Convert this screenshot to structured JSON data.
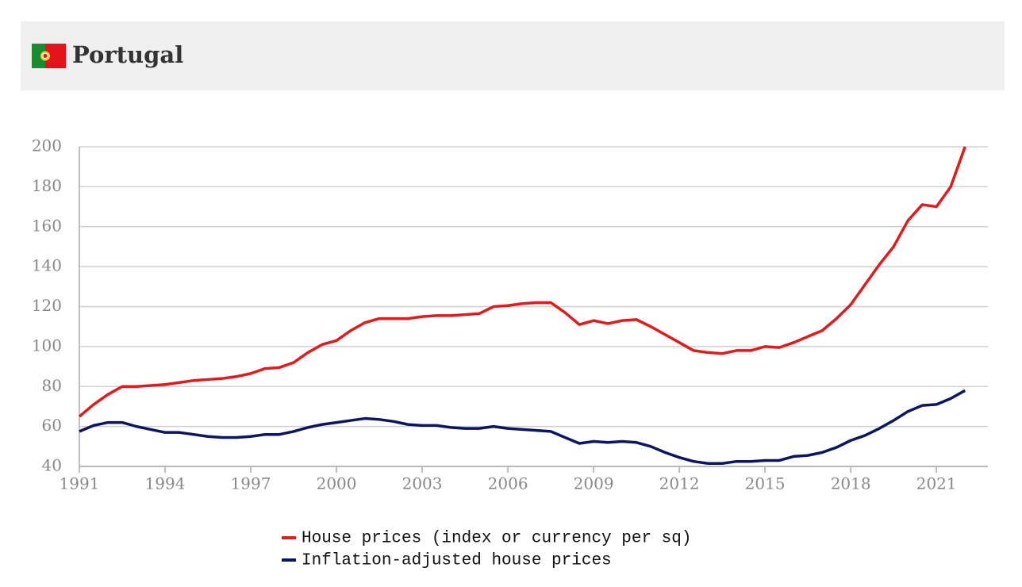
{
  "chart_data": {
    "type": "line",
    "title": "Portugal",
    "x": [
      1991,
      1991.5,
      1992,
      1992.5,
      1993,
      1993.5,
      1994,
      1994.5,
      1995,
      1995.5,
      1996,
      1996.5,
      1997,
      1997.5,
      1998,
      1998.5,
      1999,
      1999.5,
      2000,
      2000.5,
      2001,
      2001.5,
      2002,
      2002.5,
      2003,
      2003.5,
      2004,
      2004.5,
      2005,
      2005.5,
      2006,
      2006.5,
      2007,
      2007.5,
      2008,
      2008.5,
      2009,
      2009.5,
      2010,
      2010.5,
      2011,
      2011.5,
      2012,
      2012.5,
      2013,
      2013.5,
      2014,
      2014.5,
      2015,
      2015.5,
      2016,
      2016.5,
      2017,
      2017.5,
      2018,
      2018.5,
      2019,
      2019.5,
      2020,
      2020.5,
      2021,
      2021.5,
      2022
    ],
    "series": [
      {
        "name": "House prices (index or currency per sq)",
        "color": "#e31a1c",
        "values": [
          65,
          71,
          76,
          80,
          80,
          80.5,
          81,
          82,
          83,
          83.5,
          84,
          85,
          86.5,
          89,
          89.5,
          92,
          97,
          101,
          103,
          108,
          112,
          114,
          114,
          114,
          115,
          115.5,
          115.5,
          116,
          116.5,
          120,
          120.5,
          121.5,
          122,
          122,
          117,
          111,
          113,
          111.5,
          113,
          113.5,
          110,
          106,
          102,
          98,
          97,
          96.5,
          98,
          98,
          100,
          99.5,
          102,
          105,
          108,
          114,
          121,
          131,
          141,
          150,
          163,
          171,
          170,
          180,
          200
        ]
      },
      {
        "name": "Inflation-adjusted house prices",
        "color": "#0d1463",
        "values": [
          57.5,
          60.5,
          62,
          62,
          60,
          58.5,
          57,
          57,
          56,
          55,
          54.5,
          54.5,
          55,
          56,
          56,
          57.5,
          59.5,
          61,
          62,
          63,
          64,
          63.5,
          62.5,
          61,
          60.5,
          60.5,
          59.5,
          59,
          59,
          60,
          59,
          58.5,
          58,
          57.5,
          54.5,
          51.5,
          52.5,
          52,
          52.5,
          52,
          50,
          47,
          44.5,
          42.5,
          41.5,
          41.5,
          42.5,
          42.5,
          43,
          43,
          45,
          45.5,
          47,
          49.5,
          53,
          55.5,
          59,
          63,
          67.5,
          70.5,
          71,
          74,
          78
        ]
      }
    ],
    "xlim": [
      1991,
      2022.8
    ],
    "xticks": [
      1991,
      1994,
      1997,
      2000,
      2003,
      2006,
      2009,
      2012,
      2015,
      2018,
      2021
    ],
    "ylim": [
      40,
      200
    ],
    "yticks": [
      40,
      60,
      80,
      100,
      120,
      140,
      160,
      180,
      200
    ],
    "grid": true
  }
}
